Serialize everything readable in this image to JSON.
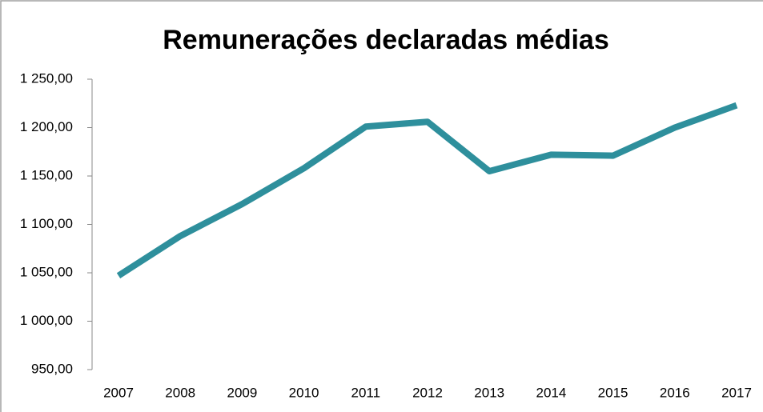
{
  "chart_data": {
    "type": "line",
    "title": "Remunerações declaradas médias",
    "categories": [
      "2007",
      "2008",
      "2009",
      "2010",
      "2011",
      "2012",
      "2013",
      "2014",
      "2015",
      "2016",
      "2017"
    ],
    "series": [
      {
        "name": "Remunerações declaradas médias",
        "color": "#2e8f9c",
        "values": [
          1047,
          1088,
          1121,
          1158,
          1201,
          1206,
          1155,
          1172,
          1171,
          1200,
          1223
        ]
      }
    ],
    "ylim": [
      950,
      1250
    ],
    "yticks": [
      {
        "value": 950,
        "label": "950,00"
      },
      {
        "value": 1000,
        "label": "1 000,00"
      },
      {
        "value": 1050,
        "label": "1 050,00"
      },
      {
        "value": 1100,
        "label": "1 100,00"
      },
      {
        "value": 1150,
        "label": "1 150,00"
      },
      {
        "value": 1200,
        "label": "1 200,00"
      },
      {
        "value": 1250,
        "label": "1 250,00"
      }
    ],
    "legend": false,
    "grid": false
  }
}
